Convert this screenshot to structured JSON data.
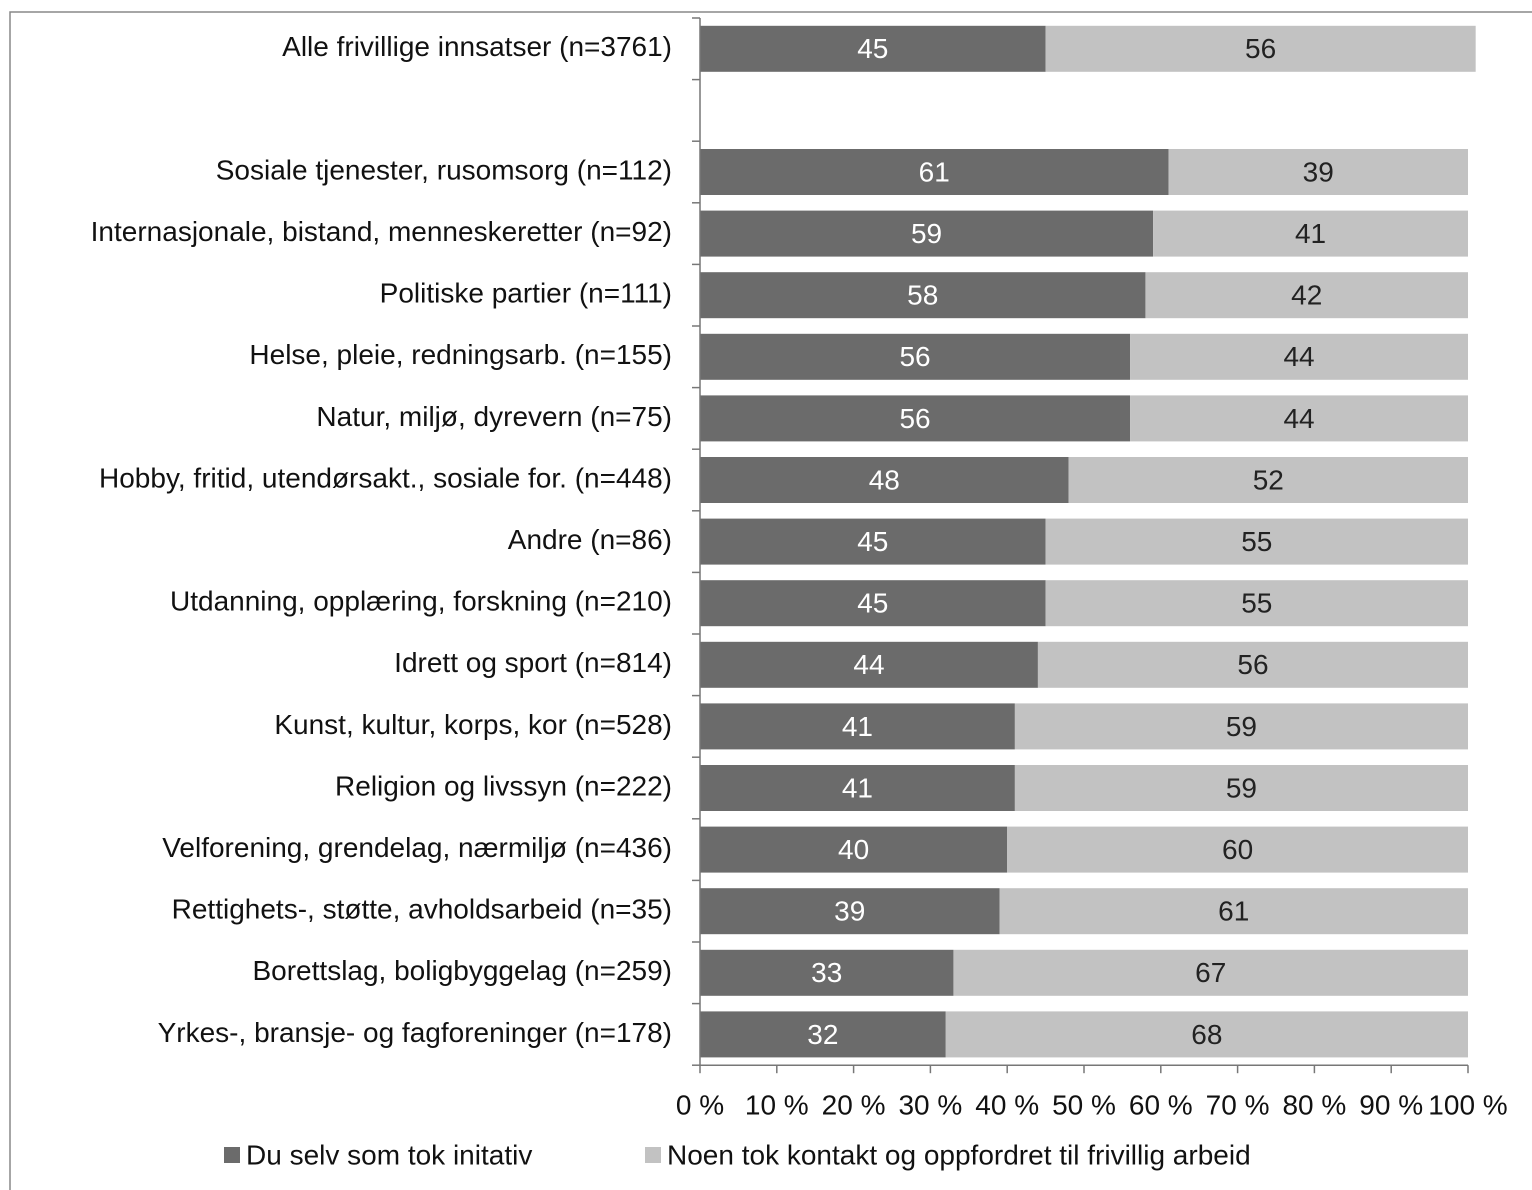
{
  "chart_data": {
    "type": "stacked_barh",
    "categories": [
      "Alle frivillige innsatser (n=3761)",
      null,
      "Sosiale tjenester, rusomsorg (n=112)",
      "Internasjonale, bistand, menneskeretter (n=92)",
      "Politiske partier (n=111)",
      "Helse, pleie, redningsarb. (n=155)",
      "Natur, miljø, dyrevern (n=75)",
      "Hobby, fritid, utendørsakt., sosiale for. (n=448)",
      "Andre (n=86)",
      "Utdanning, opplæring, forskning (n=210)",
      "Idrett og sport (n=814)",
      "Kunst, kultur, korps, kor (n=528)",
      "Religion og livssyn (n=222)",
      "Velforening, grendelag, nærmiljø (n=436)",
      "Rettighets-, støtte, avholdsarbeid (n=35)",
      "Borettslag, boligbyggelag (n=259)",
      "Yrkes-, bransje- og fagforeninger (n=178)"
    ],
    "series": [
      {
        "name": "Du selv som tok initativ",
        "color": "#6b6b6b",
        "label_color": "#ffffff",
        "values": [
          45,
          null,
          61,
          59,
          58,
          56,
          56,
          48,
          45,
          45,
          44,
          41,
          41,
          40,
          39,
          33,
          32
        ]
      },
      {
        "name": "Noen tok kontakt og oppfordret til frivillig arbeid",
        "color": "#c2c2c2",
        "label_color": "#222222",
        "values": [
          56,
          null,
          39,
          41,
          42,
          44,
          44,
          52,
          55,
          55,
          56,
          59,
          59,
          60,
          61,
          67,
          68
        ]
      }
    ],
    "xlim": [
      0,
      100
    ],
    "xticks": [
      {
        "value": 0,
        "label": "0 %"
      },
      {
        "value": 10,
        "label": "10 %"
      },
      {
        "value": 20,
        "label": "20 %"
      },
      {
        "value": 30,
        "label": "30 %"
      },
      {
        "value": 40,
        "label": "40 %"
      },
      {
        "value": 50,
        "label": "50 %"
      },
      {
        "value": 60,
        "label": "60 %"
      },
      {
        "value": 70,
        "label": "70 %"
      },
      {
        "value": 80,
        "label": "80 %"
      },
      {
        "value": 90,
        "label": "90 %"
      },
      {
        "value": 100,
        "label": "100 %"
      }
    ]
  }
}
